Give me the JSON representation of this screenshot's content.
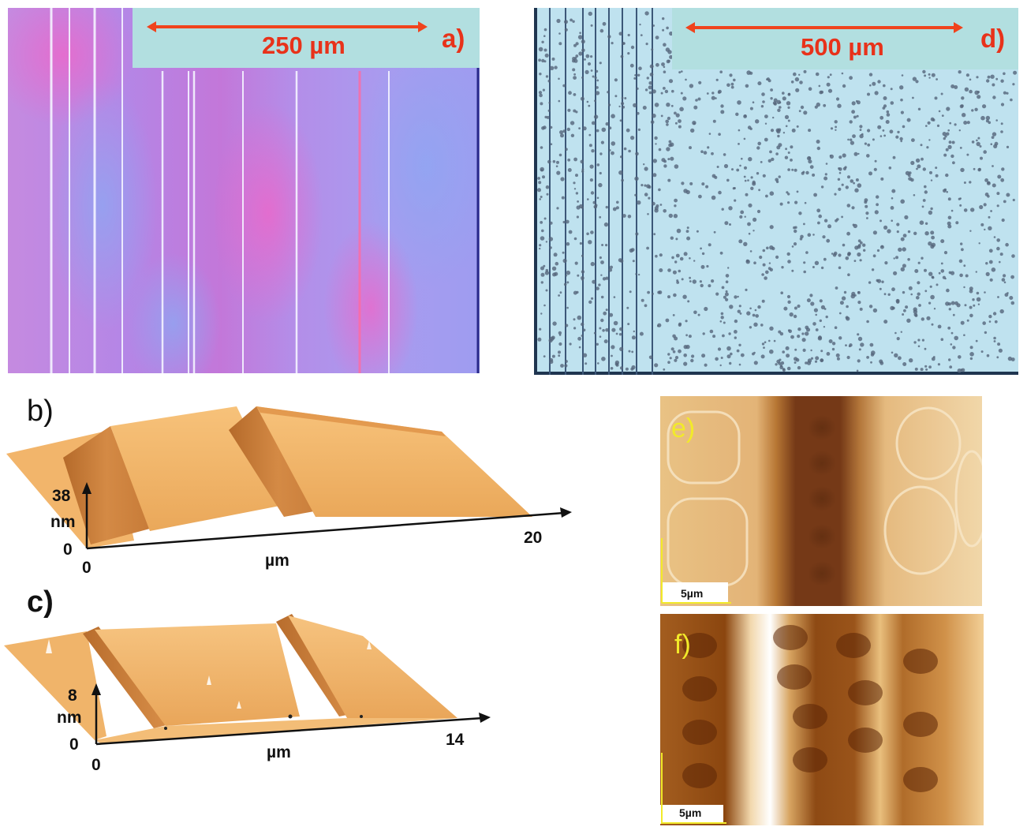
{
  "panels": {
    "a": {
      "label": "a)",
      "scale_bar": "250 µm"
    },
    "d": {
      "label": "d)",
      "scale_bar": "500 µm"
    },
    "b": {
      "label": "b)",
      "z_max": "38",
      "z_unit": "nm",
      "z_min": "0",
      "x_min": "0",
      "x_max": "20",
      "x_unit": "µm"
    },
    "c": {
      "label": "c)",
      "z_max": "8",
      "z_unit": "nm",
      "z_min": "0",
      "x_min": "0",
      "x_max": "14",
      "x_unit": "µm"
    },
    "e": {
      "label": "e)",
      "scale_bar": "5µm"
    },
    "f": {
      "label": "f)",
      "scale_bar": "5µm"
    }
  },
  "colors": {
    "scale_bar_red": "#f0431d",
    "label_red": "#e8321a",
    "label_band": "#b2dfe0",
    "afm_label_yellow": "#f2ea2a",
    "afm_orange": "#e8a95a"
  }
}
